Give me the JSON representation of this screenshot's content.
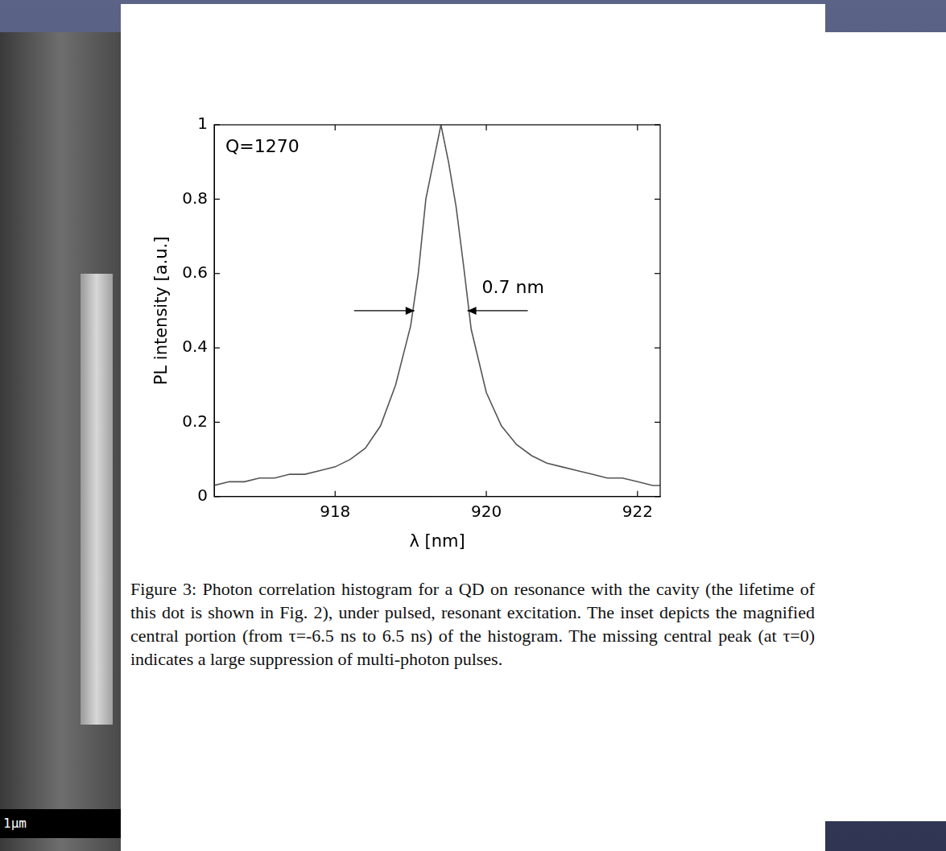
{
  "chart_data": {
    "type": "line",
    "x_label": "λ [nm]",
    "y_label": "PL intensity [a.u.]",
    "annotations": [
      {
        "text": "Q=1270"
      },
      {
        "text": "0.7 nm",
        "fwhm": [
          919.05,
          919.75
        ],
        "y": 0.5
      }
    ],
    "x": [
      916.4,
      916.6,
      916.8,
      917.0,
      917.2,
      917.4,
      917.6,
      917.8,
      918.0,
      918.2,
      918.4,
      918.6,
      918.8,
      919.0,
      919.1,
      919.2,
      919.3,
      919.4,
      919.5,
      919.6,
      919.7,
      919.8,
      920.0,
      920.2,
      920.4,
      920.6,
      920.8,
      921.0,
      921.2,
      921.4,
      921.6,
      921.8,
      922.0,
      922.2,
      922.3
    ],
    "values": [
      0.03,
      0.04,
      0.04,
      0.05,
      0.05,
      0.06,
      0.06,
      0.07,
      0.08,
      0.1,
      0.13,
      0.19,
      0.3,
      0.46,
      0.6,
      0.8,
      0.9,
      1.0,
      0.9,
      0.78,
      0.62,
      0.45,
      0.28,
      0.19,
      0.14,
      0.11,
      0.09,
      0.08,
      0.07,
      0.06,
      0.05,
      0.05,
      0.04,
      0.03,
      0.03
    ],
    "color": "#555555",
    "xlim": [
      916.4,
      922.3
    ],
    "xticks": [
      918,
      920,
      922
    ],
    "ylim": [
      0,
      1
    ],
    "yticks": [
      0,
      0.2,
      0.4,
      0.6,
      0.8,
      1
    ],
    "grid": false
  },
  "caption": "Figure 3: Photon correlation histogram for a QD on resonance with the cavity (the lifetime of this dot is shown in Fig. 2), under pulsed, resonant excitation. The inset depicts the magnified central portion (from τ=-6.5 ns to 6.5 ns) of the histogram. The missing central peak (at τ=0) indicates a large suppression of multi-photon pulses.",
  "scale_bar": "1μm"
}
